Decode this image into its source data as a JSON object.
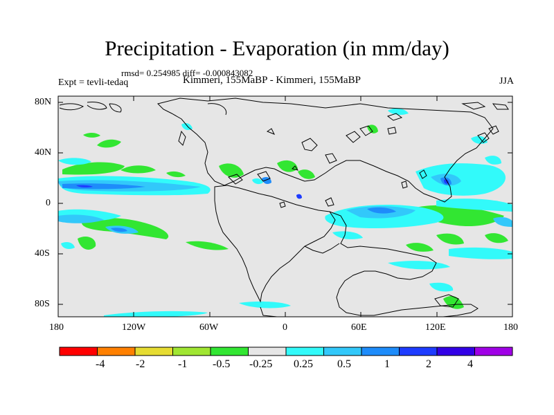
{
  "title": "Precipitation - Evaporation (in mm/day)",
  "stats_text": "rmsd= 0.254985 diff= -0.000843082",
  "experiment_label": "Expt = tevli-tedaq",
  "comparison": "Kimmeri, 155MaBP - Kimmeri, 155MaBP",
  "season": "JJA",
  "latitude_labels": [
    "80N",
    "40N",
    "0",
    "40S",
    "80S"
  ],
  "longitude_labels": [
    "180",
    "120W",
    "60W",
    "0",
    "60E",
    "120E",
    "180"
  ],
  "colorbar": {
    "colors": [
      "#ff0000",
      "#ff8000",
      "#e6dc32",
      "#a0e632",
      "#32e632",
      "#e6e6e6",
      "#32fafa",
      "#32c8fa",
      "#1e8cfa",
      "#1e3cff",
      "#3200e6",
      "#a000e6"
    ],
    "labels": [
      "-4",
      "-2",
      "-1",
      "-0.5",
      "-0.25",
      "0.25",
      "0.5",
      "1",
      "2",
      "4"
    ]
  },
  "map_background_color": "#e6e6e6"
}
